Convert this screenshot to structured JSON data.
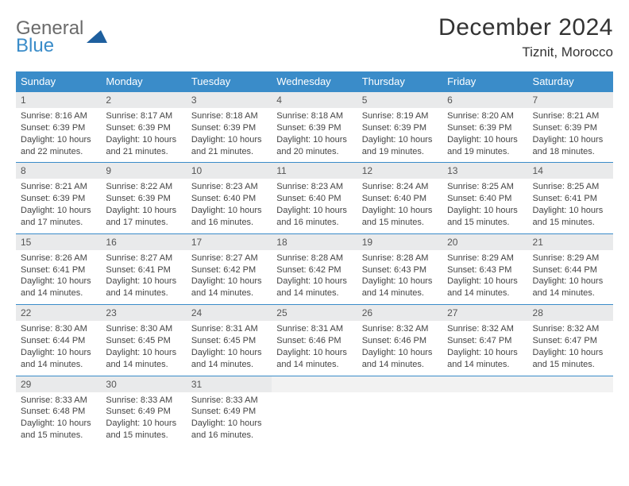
{
  "logo": {
    "line1": "General",
    "line2": "Blue"
  },
  "title": "December 2024",
  "location": "Tiznit, Morocco",
  "colors": {
    "header_bg": "#3a8cc9",
    "header_text": "#ffffff",
    "daynum_bg": "#e9eaeb",
    "border": "#3a8cc9",
    "body_text": "#444"
  },
  "weekdays": [
    "Sunday",
    "Monday",
    "Tuesday",
    "Wednesday",
    "Thursday",
    "Friday",
    "Saturday"
  ],
  "weeks": [
    [
      {
        "n": "1",
        "sr": "8:16 AM",
        "ss": "6:39 PM",
        "dl": "10 hours and 22 minutes."
      },
      {
        "n": "2",
        "sr": "8:17 AM",
        "ss": "6:39 PM",
        "dl": "10 hours and 21 minutes."
      },
      {
        "n": "3",
        "sr": "8:18 AM",
        "ss": "6:39 PM",
        "dl": "10 hours and 21 minutes."
      },
      {
        "n": "4",
        "sr": "8:18 AM",
        "ss": "6:39 PM",
        "dl": "10 hours and 20 minutes."
      },
      {
        "n": "5",
        "sr": "8:19 AM",
        "ss": "6:39 PM",
        "dl": "10 hours and 19 minutes."
      },
      {
        "n": "6",
        "sr": "8:20 AM",
        "ss": "6:39 PM",
        "dl": "10 hours and 19 minutes."
      },
      {
        "n": "7",
        "sr": "8:21 AM",
        "ss": "6:39 PM",
        "dl": "10 hours and 18 minutes."
      }
    ],
    [
      {
        "n": "8",
        "sr": "8:21 AM",
        "ss": "6:39 PM",
        "dl": "10 hours and 17 minutes."
      },
      {
        "n": "9",
        "sr": "8:22 AM",
        "ss": "6:39 PM",
        "dl": "10 hours and 17 minutes."
      },
      {
        "n": "10",
        "sr": "8:23 AM",
        "ss": "6:40 PM",
        "dl": "10 hours and 16 minutes."
      },
      {
        "n": "11",
        "sr": "8:23 AM",
        "ss": "6:40 PM",
        "dl": "10 hours and 16 minutes."
      },
      {
        "n": "12",
        "sr": "8:24 AM",
        "ss": "6:40 PM",
        "dl": "10 hours and 15 minutes."
      },
      {
        "n": "13",
        "sr": "8:25 AM",
        "ss": "6:40 PM",
        "dl": "10 hours and 15 minutes."
      },
      {
        "n": "14",
        "sr": "8:25 AM",
        "ss": "6:41 PM",
        "dl": "10 hours and 15 minutes."
      }
    ],
    [
      {
        "n": "15",
        "sr": "8:26 AM",
        "ss": "6:41 PM",
        "dl": "10 hours and 14 minutes."
      },
      {
        "n": "16",
        "sr": "8:27 AM",
        "ss": "6:41 PM",
        "dl": "10 hours and 14 minutes."
      },
      {
        "n": "17",
        "sr": "8:27 AM",
        "ss": "6:42 PM",
        "dl": "10 hours and 14 minutes."
      },
      {
        "n": "18",
        "sr": "8:28 AM",
        "ss": "6:42 PM",
        "dl": "10 hours and 14 minutes."
      },
      {
        "n": "19",
        "sr": "8:28 AM",
        "ss": "6:43 PM",
        "dl": "10 hours and 14 minutes."
      },
      {
        "n": "20",
        "sr": "8:29 AM",
        "ss": "6:43 PM",
        "dl": "10 hours and 14 minutes."
      },
      {
        "n": "21",
        "sr": "8:29 AM",
        "ss": "6:44 PM",
        "dl": "10 hours and 14 minutes."
      }
    ],
    [
      {
        "n": "22",
        "sr": "8:30 AM",
        "ss": "6:44 PM",
        "dl": "10 hours and 14 minutes."
      },
      {
        "n": "23",
        "sr": "8:30 AM",
        "ss": "6:45 PM",
        "dl": "10 hours and 14 minutes."
      },
      {
        "n": "24",
        "sr": "8:31 AM",
        "ss": "6:45 PM",
        "dl": "10 hours and 14 minutes."
      },
      {
        "n": "25",
        "sr": "8:31 AM",
        "ss": "6:46 PM",
        "dl": "10 hours and 14 minutes."
      },
      {
        "n": "26",
        "sr": "8:32 AM",
        "ss": "6:46 PM",
        "dl": "10 hours and 14 minutes."
      },
      {
        "n": "27",
        "sr": "8:32 AM",
        "ss": "6:47 PM",
        "dl": "10 hours and 14 minutes."
      },
      {
        "n": "28",
        "sr": "8:32 AM",
        "ss": "6:47 PM",
        "dl": "10 hours and 15 minutes."
      }
    ],
    [
      {
        "n": "29",
        "sr": "8:33 AM",
        "ss": "6:48 PM",
        "dl": "10 hours and 15 minutes."
      },
      {
        "n": "30",
        "sr": "8:33 AM",
        "ss": "6:49 PM",
        "dl": "10 hours and 15 minutes."
      },
      {
        "n": "31",
        "sr": "8:33 AM",
        "ss": "6:49 PM",
        "dl": "10 hours and 16 minutes."
      },
      null,
      null,
      null,
      null
    ]
  ],
  "labels": {
    "sunrise": "Sunrise: ",
    "sunset": "Sunset: ",
    "daylight": "Daylight: "
  }
}
